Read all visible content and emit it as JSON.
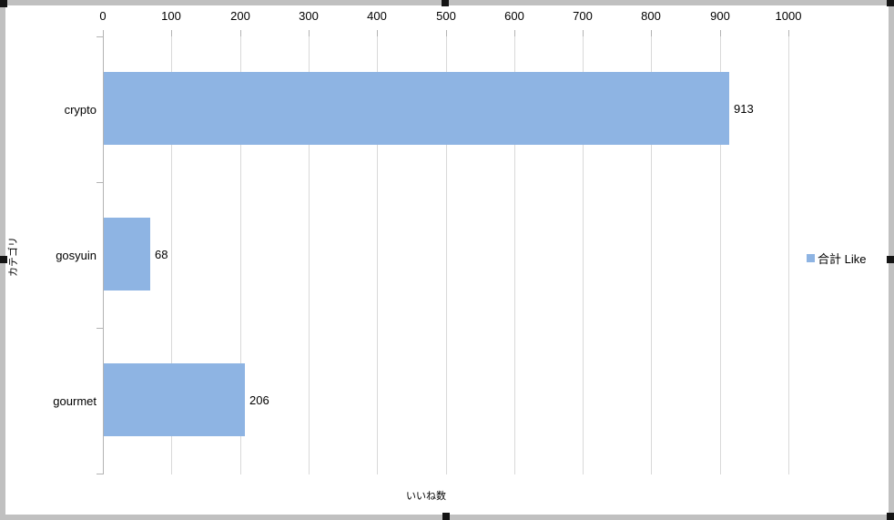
{
  "chart_data": {
    "type": "bar",
    "orientation": "horizontal",
    "categories": [
      "crypto",
      "gosyuin",
      "gourmet"
    ],
    "series": [
      {
        "name": "合計 Like",
        "values": [
          913,
          68,
          206
        ]
      }
    ],
    "data_labels": [
      "913",
      "68",
      "206"
    ],
    "title": "",
    "xlabel": "いいね数",
    "ylabel": "カテゴリ",
    "xlim": [
      0,
      1000
    ],
    "xticks": [
      0,
      100,
      200,
      300,
      400,
      500,
      600,
      700,
      800,
      900,
      1000
    ],
    "grid": true,
    "legend_position": "right",
    "bar_color": "#8eb4e3"
  },
  "legend": {
    "label": "合計 Like",
    "swatch_color": "#8eb4e3"
  },
  "colors": {
    "bar": "#8eb4e3",
    "gridline": "#d9d9d9",
    "axis": "#b3b3b3",
    "frame_border": "#c0c0c0",
    "selection_handle": "#141414"
  }
}
